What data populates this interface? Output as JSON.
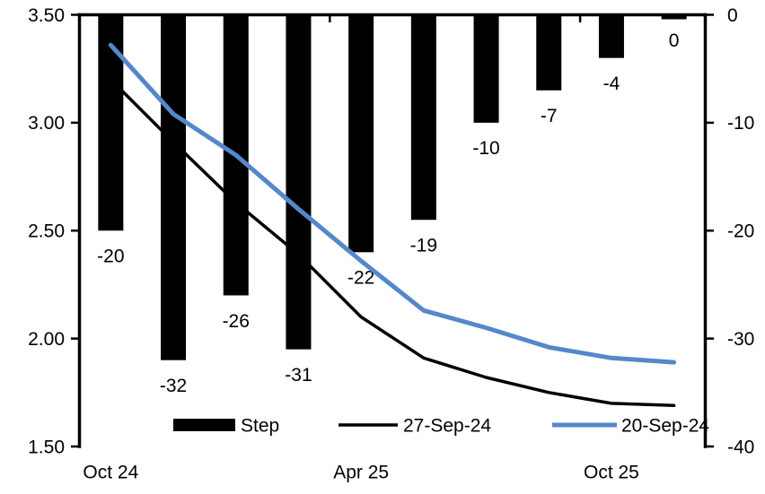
{
  "chart_data": {
    "type": "combo_bar_line",
    "title": "",
    "n_categories": 10,
    "x_axis": {
      "labels": [
        {
          "text": "Oct 24",
          "category_index": 0
        },
        {
          "text": "Apr 25",
          "category_index": 4
        },
        {
          "text": "Oct 25",
          "category_index": 8
        }
      ],
      "boundary_ticks": [
        4,
        8
      ]
    },
    "left_axis": {
      "min": 1.5,
      "max": 3.5,
      "ticks": [
        {
          "value": 3.5,
          "label": "3.50"
        },
        {
          "value": 3.0,
          "label": "3.00"
        },
        {
          "value": 2.5,
          "label": "2.50"
        },
        {
          "value": 2.0,
          "label": "2.00"
        },
        {
          "value": 1.5,
          "label": "1.50"
        }
      ]
    },
    "right_axis": {
      "min": -40,
      "max": 0,
      "ticks": [
        {
          "value": 0,
          "label": "0"
        },
        {
          "value": -10,
          "label": "-10"
        },
        {
          "value": -20,
          "label": "-20"
        },
        {
          "value": -30,
          "label": "-30"
        },
        {
          "value": -40,
          "label": "-40"
        }
      ]
    },
    "bar_series": {
      "name": "Step",
      "axis": "right",
      "color": "#000000",
      "values": [
        -20,
        -32,
        -26,
        -31,
        -22,
        -19,
        -10,
        -7,
        -4,
        0
      ],
      "data_labels": [
        "-20",
        "-32",
        "-26",
        "-31",
        "-22",
        "-19",
        "-10",
        "-7",
        "-4",
        "0"
      ]
    },
    "line_series": [
      {
        "name": "27-Sep-24",
        "axis": "left",
        "color": "#000000",
        "stroke_width": 3.5,
        "values": [
          3.2,
          2.91,
          2.63,
          2.39,
          2.1,
          1.91,
          1.82,
          1.75,
          1.7,
          1.69
        ]
      },
      {
        "name": "20-Sep-24",
        "axis": "left",
        "color": "#5587CB",
        "stroke_width": 5,
        "values": [
          3.36,
          3.04,
          2.85,
          2.6,
          2.36,
          2.13,
          2.05,
          1.96,
          1.91,
          1.89
        ]
      }
    ],
    "legend": {
      "position": "bottom-inside",
      "items": [
        {
          "label": "Step",
          "marker": "bar",
          "color": "#000000"
        },
        {
          "label": "27-Sep-24",
          "marker": "line",
          "color": "#000000"
        },
        {
          "label": "20-Sep-24",
          "marker": "line",
          "color": "#5587CB"
        }
      ]
    }
  }
}
